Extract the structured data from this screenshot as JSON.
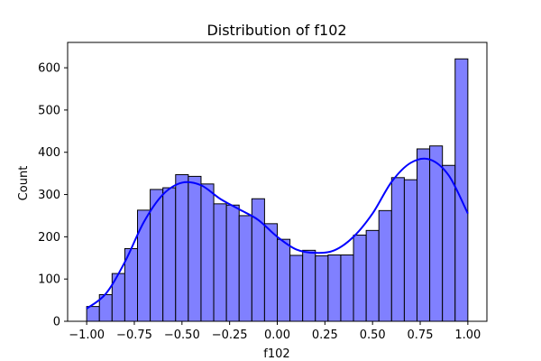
{
  "chart_data": {
    "type": "bar",
    "title": "Distribution of f102",
    "xlabel": "f102",
    "ylabel": "Count",
    "xlim": [
      -1.1,
      1.1
    ],
    "ylim": [
      0,
      660
    ],
    "xticks": [
      -1.0,
      -0.75,
      -0.5,
      -0.25,
      0.0,
      0.25,
      0.5,
      0.75,
      1.0
    ],
    "xtick_labels": [
      "−1.00",
      "−0.75",
      "−0.50",
      "−0.25",
      "0.00",
      "0.25",
      "0.50",
      "0.75",
      "1.00"
    ],
    "yticks": [
      0,
      100,
      200,
      300,
      400,
      500,
      600
    ],
    "ytick_labels": [
      "0",
      "100",
      "200",
      "300",
      "400",
      "500",
      "600"
    ],
    "bin_edges": [
      -1.0,
      -0.9333,
      -0.8667,
      -0.8,
      -0.7333,
      -0.6667,
      -0.6,
      -0.5333,
      -0.4667,
      -0.4,
      -0.3333,
      -0.2667,
      -0.2,
      -0.1333,
      -0.0667,
      0.0,
      0.0667,
      0.1333,
      0.2,
      0.2667,
      0.3333,
      0.4,
      0.4667,
      0.5333,
      0.6,
      0.6667,
      0.7333,
      0.8,
      0.8667,
      0.9333,
      1.0
    ],
    "values": [
      35,
      63,
      113,
      172,
      263,
      312,
      316,
      347,
      343,
      325,
      278,
      275,
      250,
      290,
      231,
      194,
      156,
      168,
      155,
      157,
      157,
      204,
      215,
      262,
      340,
      335,
      408,
      415,
      369,
      621
    ],
    "kde": {
      "x": [
        -1.0,
        -0.9,
        -0.8,
        -0.7,
        -0.6,
        -0.5,
        -0.4,
        -0.3,
        -0.2,
        -0.1,
        0.0,
        0.1,
        0.2,
        0.3,
        0.4,
        0.5,
        0.6,
        0.7,
        0.8,
        0.9,
        1.0
      ],
      "y": [
        30,
        65,
        140,
        235,
        300,
        328,
        322,
        290,
        265,
        240,
        200,
        170,
        162,
        168,
        200,
        255,
        330,
        375,
        383,
        345,
        255
      ]
    },
    "bar_color": "#8080ff",
    "line_color": "#0000ff"
  }
}
